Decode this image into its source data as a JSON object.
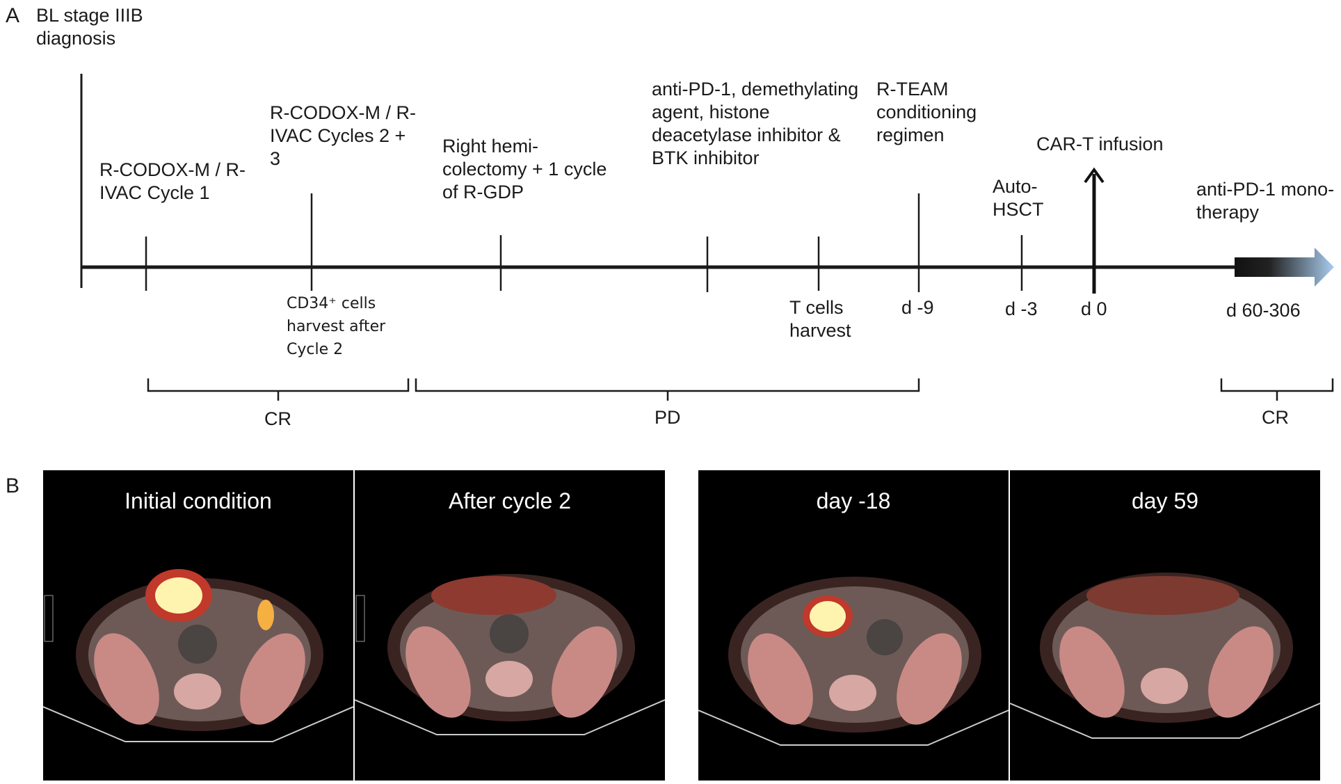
{
  "panel_a": {
    "letter": "A",
    "diagnosis": [
      "BL stage IIIB",
      "diagnosis"
    ],
    "events_top": [
      {
        "lines": [
          "R-CODOX-M / R-",
          "IVAC Cycle 1"
        ]
      },
      {
        "lines": [
          "R-CODOX-M / R-",
          "IVAC Cycles 2 +",
          "3"
        ]
      },
      {
        "lines": [
          "Right hemi-",
          "colectomy + 1 cycle",
          "of R-GDP"
        ]
      },
      {
        "lines": [
          "anti-PD-1, demethylating",
          "agent, histone",
          "deacetylase inhibitor &",
          "BTK inhibitor"
        ]
      },
      {
        "lines": [
          "R-TEAM",
          "conditioning",
          "regimen"
        ]
      },
      {
        "lines": [
          "Auto-",
          "HSCT"
        ]
      },
      {
        "lines": [
          "CAR-T infusion"
        ]
      },
      {
        "lines": [
          "anti-PD-1 mono-",
          "therapy"
        ]
      }
    ],
    "events_bottom": [
      {
        "lines": [
          "CD34⁺ cells",
          "harvest after",
          "Cycle 2"
        ]
      },
      {
        "lines": [
          "T cells",
          "harvest"
        ]
      },
      {
        "lines": [
          "d -9"
        ]
      },
      {
        "lines": [
          "d -3"
        ]
      },
      {
        "lines": [
          "d 0"
        ]
      },
      {
        "lines": [
          "d 60-306"
        ]
      }
    ],
    "responses": [
      "CR",
      "PD",
      "CR"
    ]
  },
  "panel_b": {
    "letter": "B",
    "scans": [
      {
        "title": "Initial condition",
        "scale_max": "10.0",
        "scale_min": "0.0"
      },
      {
        "title": "After cycle 2",
        "scale_max": "10.0",
        "scale_min": "0.0"
      },
      {
        "title": "day -18"
      },
      {
        "title": "day 59"
      }
    ]
  },
  "colors": {
    "line": "#1a1a1a",
    "arrow_head": "#9fc3e6",
    "scan_bg": "#000000",
    "hot": "#fff3b0",
    "uptake": "#c0392b"
  }
}
